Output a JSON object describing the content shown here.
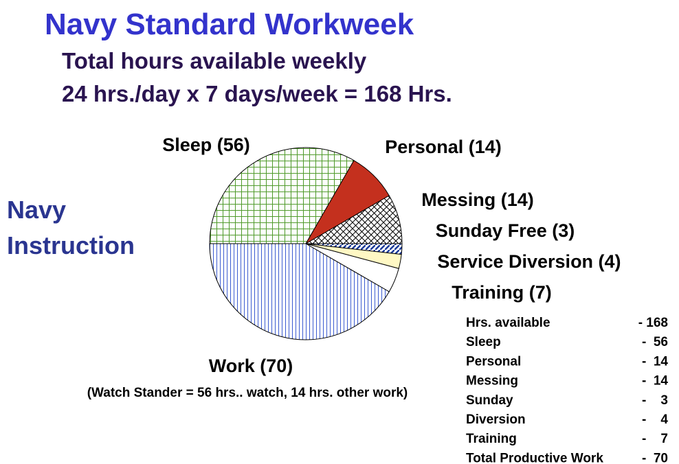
{
  "title": "Navy Standard Workweek",
  "subtitle": [
    "Total hours available weekly",
    "24 hrs./day x 7 days/week = 168 Hrs."
  ],
  "side_label": [
    "Navy",
    "Instruction"
  ],
  "chart_data": {
    "type": "pie",
    "categories": [
      "Sleep (56)",
      "Personal (14)",
      "Messing (14)",
      "Sunday Free (3)",
      "Service Diversion (4)",
      "Training (7)",
      "Work (70)"
    ],
    "values": [
      56,
      14,
      14,
      3,
      4,
      7,
      70
    ],
    "colors": [
      "#4f9a2a",
      "#c4301e",
      "#000000",
      "#1a3a9a",
      "#fff8c4",
      "#ffffff",
      "#3a5ad0"
    ],
    "patterns": [
      "grid",
      "solid",
      "crosshatch",
      "diagonal",
      "solid",
      "solid",
      "vertical"
    ],
    "annotation": "(Watch Stander = 56 hrs.. watch, 14 hrs. other work)"
  },
  "table": {
    "rows": [
      [
        "Hrs. available",
        "- 168"
      ],
      [
        "Sleep",
        "-  56"
      ],
      [
        "Personal",
        "-  14"
      ],
      [
        "Messing",
        "-  14"
      ],
      [
        "Sunday",
        "-    3"
      ],
      [
        "Diversion",
        "-    4"
      ],
      [
        "Training",
        "-    7"
      ],
      [
        "Total Productive Work",
        "-  70"
      ]
    ]
  }
}
